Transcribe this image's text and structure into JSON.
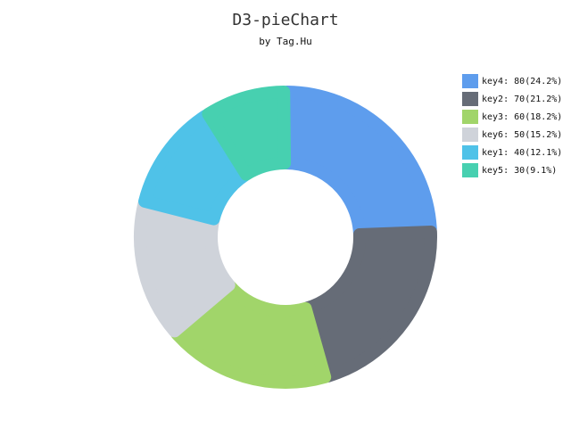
{
  "chart_data": {
    "type": "pie",
    "title": "D3-pieChart",
    "subtitle": "by Tag.Hu",
    "legend_position": "top-right",
    "slices": [
      {
        "label": "key4",
        "value": 80,
        "percent_text": "(24.2%)",
        "color": "#5e9ded"
      },
      {
        "label": "key2",
        "value": 70,
        "percent_text": "(21.2%)",
        "color": "#666c77"
      },
      {
        "label": "key3",
        "value": 60,
        "percent_text": "(18.2%)",
        "color": "#a1d56a"
      },
      {
        "label": "key6",
        "value": 50,
        "percent_text": "(15.2%)",
        "color": "#cfd3da"
      },
      {
        "label": "key1",
        "value": 40,
        "percent_text": "(12.1%)",
        "color": "#4fc2e8"
      },
      {
        "label": "key5",
        "value": 30,
        "percent_text": "(9.1%)",
        "color": "#47d0b0"
      }
    ]
  }
}
